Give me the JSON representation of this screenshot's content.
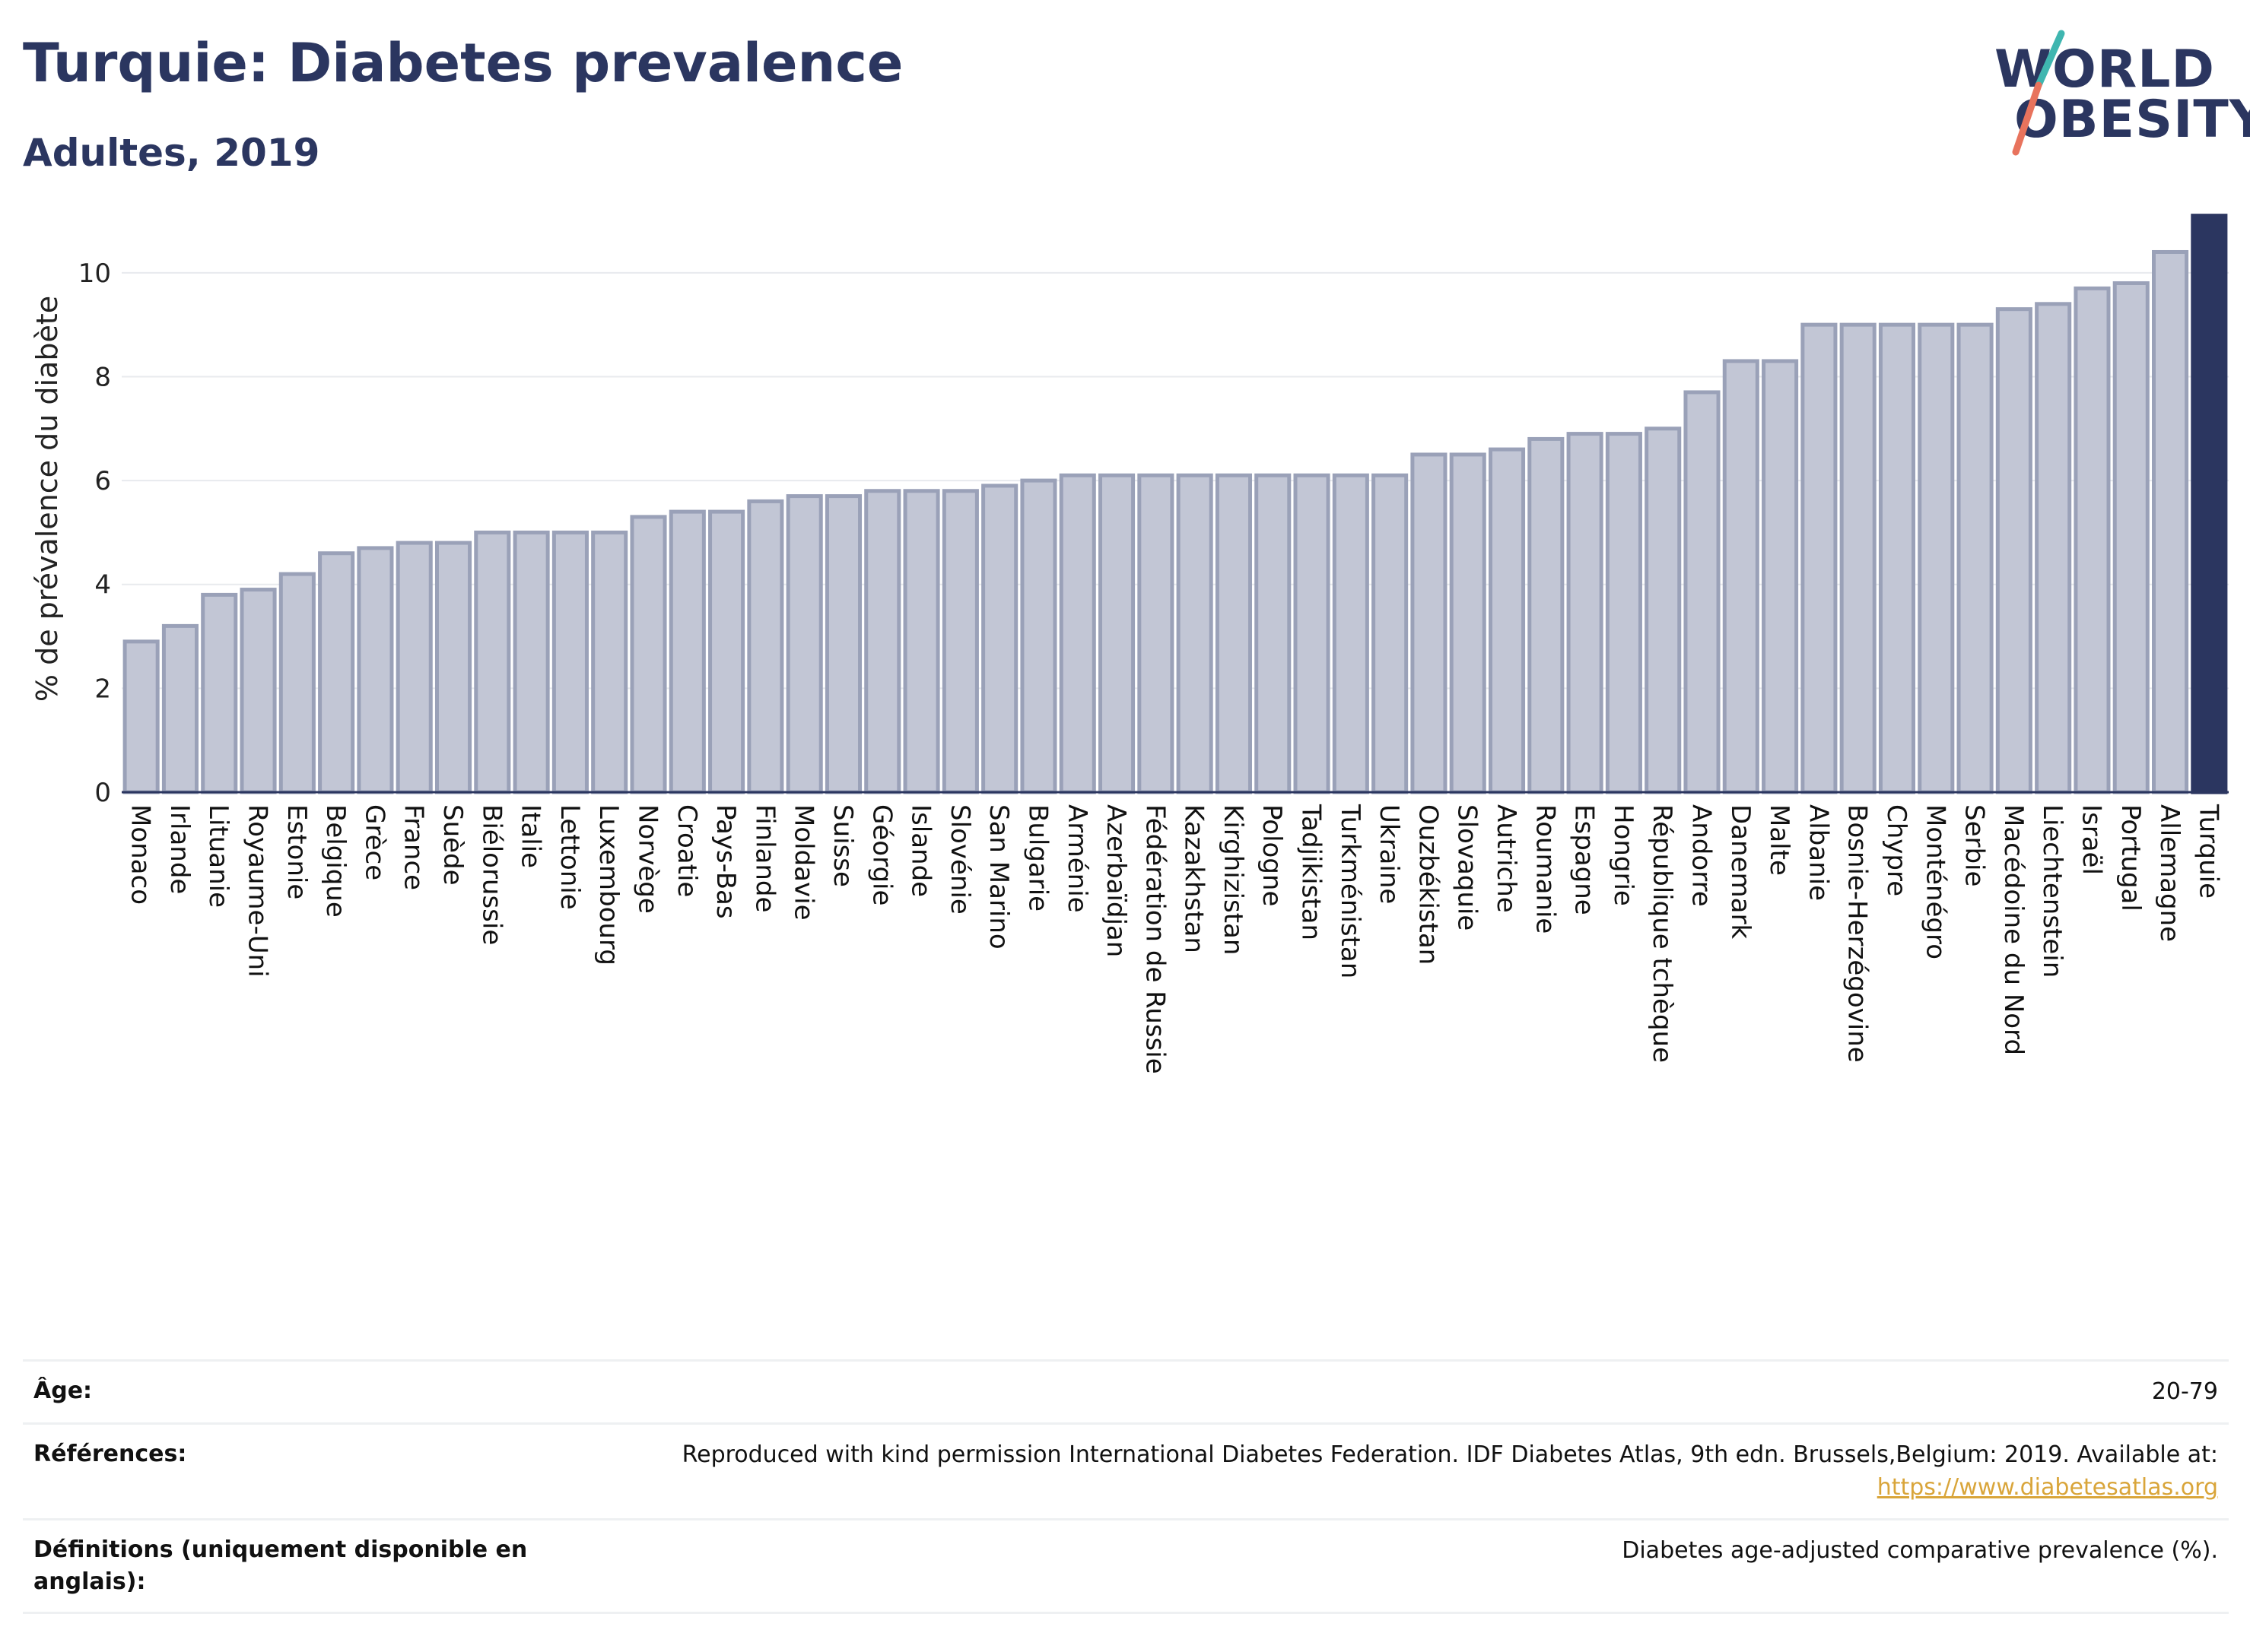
{
  "header": {
    "title": "Turquie: Diabetes prevalence",
    "subtitle": "Adultes, 2019",
    "logo_top": "WORLD",
    "logo_bottom": "OBESITY"
  },
  "colors": {
    "bar": "#c2c6d5",
    "bar_edge": "#9aa1b8",
    "highlight": "#2b3660",
    "grid": "#e8eaee",
    "logo_teal": "#3fb6b0",
    "logo_coral": "#e8735d"
  },
  "chart_data": {
    "type": "bar",
    "ylabel": "% de prévalence du diabète",
    "ylim": [
      0,
      11.3
    ],
    "yticks": [
      0,
      2,
      4,
      6,
      8,
      10
    ],
    "grid": true,
    "highlight": "Turquie",
    "categories": [
      "Monaco",
      "Irlande",
      "Lituanie",
      "Royaume-Uni",
      "Estonie",
      "Belgique",
      "Grèce",
      "France",
      "Suède",
      "Biélorussie",
      "Italie",
      "Lettonie",
      "Luxembourg",
      "Norvège",
      "Croatie",
      "Pays-Bas",
      "Finlande",
      "Moldavie",
      "Suisse",
      "Géorgie",
      "Islande",
      "Slovénie",
      "San Marino",
      "Bulgarie",
      "Arménie",
      "Azerbaïdjan",
      "Fédération de Russie",
      "Kazakhstan",
      "Kirghizistan",
      "Pologne",
      "Tadjikistan",
      "Turkménistan",
      "Ukraine",
      "Ouzbékistan",
      "Slovaquie",
      "Autriche",
      "Roumanie",
      "Espagne",
      "Hongrie",
      "République tchèque",
      "Andorre",
      "Danemark",
      "Malte",
      "Albanie",
      "Bosnie-Herzégovine",
      "Chypre",
      "Monténégro",
      "Serbie",
      "Macédoine du Nord",
      "Liechtenstein",
      "Israël",
      "Portugal",
      "Allemagne",
      "Turquie"
    ],
    "values": [
      2.9,
      3.2,
      3.8,
      3.9,
      4.2,
      4.6,
      4.7,
      4.8,
      4.8,
      5.0,
      5.0,
      5.0,
      5.0,
      5.3,
      5.4,
      5.4,
      5.6,
      5.7,
      5.7,
      5.8,
      5.8,
      5.8,
      5.9,
      6.0,
      6.1,
      6.1,
      6.1,
      6.1,
      6.1,
      6.1,
      6.1,
      6.1,
      6.1,
      6.5,
      6.5,
      6.6,
      6.8,
      6.9,
      6.9,
      7.0,
      7.7,
      8.3,
      8.3,
      9.0,
      9.0,
      9.0,
      9.0,
      9.0,
      9.3,
      9.4,
      9.7,
      9.8,
      10.4,
      11.1
    ]
  },
  "footer": {
    "age_label": "Âge:",
    "age_value": "20-79",
    "refs_label": "Références:",
    "refs_value": "Reproduced with kind permission International Diabetes Federation. IDF Diabetes Atlas, 9th edn. Brussels,Belgium: 2019. Available at:",
    "refs_link": "https://www.diabetesatlas.org",
    "defs_label": "Définitions (uniquement disponible en anglais):",
    "defs_value": "Diabetes age-adjusted comparative prevalence (%)."
  }
}
